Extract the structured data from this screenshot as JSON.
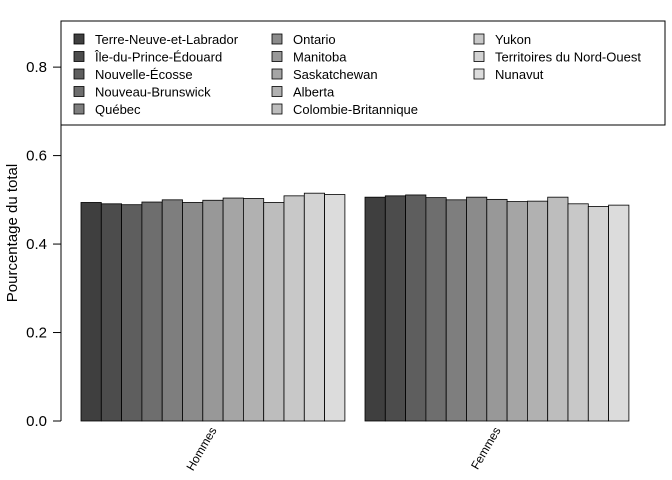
{
  "chart_data": {
    "type": "bar",
    "ylabel": "Pourcentage du total",
    "ylim": [
      0,
      0.85
    ],
    "yticks": [
      "0.0",
      "0.2",
      "0.4",
      "0.6",
      "0.8"
    ],
    "groups": [
      "Hommes",
      "Femmes"
    ],
    "legend_position": "top",
    "series": [
      {
        "name": "Terre-Neuve-et-Labrador",
        "color": "#3f3f3f",
        "values": [
          0.494,
          0.506
        ]
      },
      {
        "name": "Île-du-Prince-Édouard",
        "color": "#4c4c4c",
        "values": [
          0.491,
          0.509
        ]
      },
      {
        "name": "Nouvelle-Écosse",
        "color": "#5e5e5e",
        "values": [
          0.489,
          0.511
        ]
      },
      {
        "name": "Nouveau-Brunswick",
        "color": "#6e6e6e",
        "values": [
          0.495,
          0.505
        ]
      },
      {
        "name": "Québec",
        "color": "#7e7e7e",
        "values": [
          0.5,
          0.5
        ]
      },
      {
        "name": "Ontario",
        "color": "#8b8b8b",
        "values": [
          0.494,
          0.506
        ]
      },
      {
        "name": "Manitoba",
        "color": "#989898",
        "values": [
          0.499,
          0.501
        ]
      },
      {
        "name": "Saskatchewan",
        "color": "#a5a5a5",
        "values": [
          0.504,
          0.496
        ]
      },
      {
        "name": "Alberta",
        "color": "#b1b1b1",
        "values": [
          0.503,
          0.497
        ]
      },
      {
        "name": "Colombie-Britannique",
        "color": "#bdbdbd",
        "values": [
          0.494,
          0.506
        ]
      },
      {
        "name": "Yukon",
        "color": "#c8c8c8",
        "values": [
          0.509,
          0.491
        ]
      },
      {
        "name": "Territoires du Nord-Ouest",
        "color": "#d3d3d3",
        "values": [
          0.515,
          0.485
        ]
      },
      {
        "name": "Nunavut",
        "color": "#dcdcdc",
        "values": [
          0.512,
          0.488
        ]
      }
    ]
  }
}
